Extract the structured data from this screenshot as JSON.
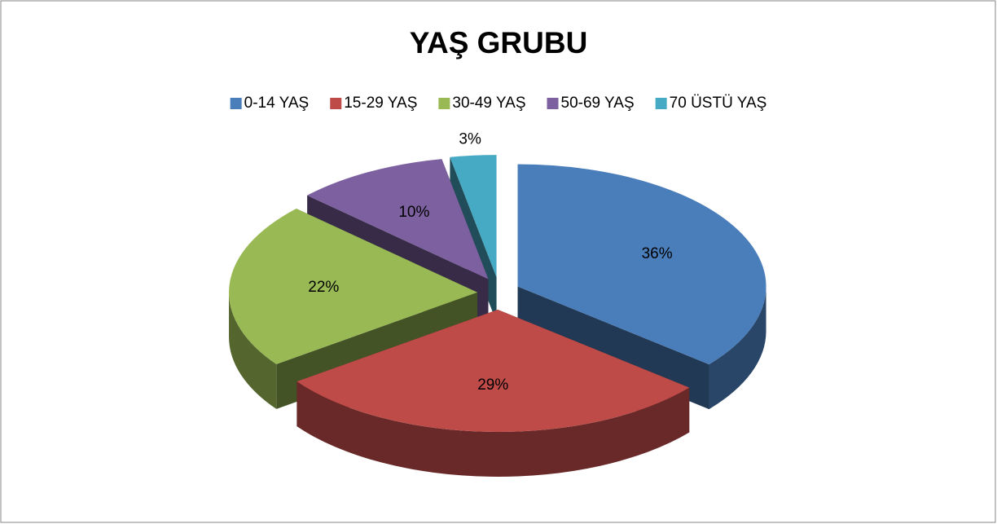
{
  "chart_data": {
    "type": "pie",
    "title": "YAŞ GRUBU",
    "categories": [
      "0-14 YAŞ",
      "15-29 YAŞ",
      "30-49 YAŞ",
      "50-69 YAŞ",
      "70 ÜSTÜ YAŞ"
    ],
    "values": [
      36,
      29,
      22,
      10,
      3
    ],
    "value_labels": [
      "36%",
      "29%",
      "22%",
      "10%",
      "3%"
    ],
    "colors": [
      "#4a7ebb",
      "#be4b48",
      "#98b954",
      "#7d60a0",
      "#46aac5"
    ],
    "legend": "top"
  }
}
